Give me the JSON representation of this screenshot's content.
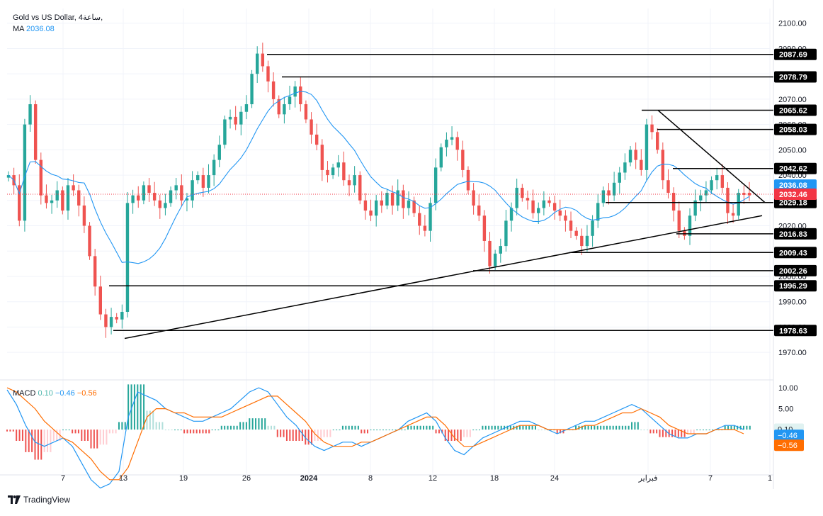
{
  "header": {
    "symbol_title": "Gold vs US Dollar, 4ساعة,",
    "ma_label": "MA",
    "ma_value": "2036.08"
  },
  "macd_header": {
    "label": "MACD",
    "hist": "0.10",
    "macd": "−0.46",
    "signal": "−0.56"
  },
  "brand": "TradingView",
  "colors": {
    "up": "#26a69a",
    "down": "#ef5350",
    "ma": "#2196f3",
    "macd_line": "#2196f3",
    "signal_line": "#ff6d00",
    "price_tag": "#f23645",
    "ma_tag": "#2196f3"
  },
  "chart_data": [
    {
      "type": "candlestick",
      "title": "Gold vs US Dollar, 4ساعة",
      "ylim": [
        1965,
        2103
      ],
      "y_ticks": [
        "2100.00",
        "2090.00",
        "2080.00",
        "2070.00",
        "2060.00",
        "2050.00",
        "2040.00",
        "2030.00",
        "2020.00",
        "2010.00",
        "2000.00",
        "1990.00",
        "1980.00",
        "1970.00"
      ],
      "x_ticks": [
        "7",
        "13",
        "19",
        "26",
        "2024",
        "8",
        "12",
        "18",
        "24",
        "فبراير",
        "7",
        "1"
      ],
      "current_price": 2032.46,
      "ma_value": 2036.08,
      "levels": [
        {
          "label": "2087.69",
          "value": 2087.69
        },
        {
          "label": "2078.79",
          "value": 2078.79
        },
        {
          "label": "2065.62",
          "value": 2065.62
        },
        {
          "label": "2058.03",
          "value": 2058.03
        },
        {
          "label": "2042.62",
          "value": 2042.62
        },
        {
          "label": "2029.18",
          "value": 2029.18
        },
        {
          "label": "2016.83",
          "value": 2016.83
        },
        {
          "label": "2009.43",
          "value": 2009.43
        },
        {
          "label": "2002.26",
          "value": 2002.26
        },
        {
          "label": "1996.29",
          "value": 1996.29
        },
        {
          "label": "1978.63",
          "value": 1978.63
        }
      ],
      "trendlines": [
        {
          "name": "ascending-support",
          "from": 1975.5,
          "to": 2024.0
        },
        {
          "name": "descending-resistance",
          "from": 2065.6,
          "to": 2029.2
        }
      ],
      "close_path": [
        2040,
        2036,
        2022,
        2060,
        2068,
        2046,
        2032,
        2029,
        2030,
        2034,
        2026,
        2036,
        2034,
        2028,
        2020,
        2008,
        1996,
        1985,
        1980,
        1984,
        1983,
        1986,
        2029,
        2032,
        2030,
        2036,
        2033,
        2030,
        2027,
        2029,
        2034,
        2036,
        2030,
        2030,
        2038,
        2040,
        2035,
        2040,
        2046,
        2052,
        2062,
        2063,
        2060,
        2065,
        2068,
        2080,
        2088,
        2083,
        2077,
        2070,
        2064,
        2068,
        2071,
        2075,
        2068,
        2062,
        2056,
        2052,
        2042,
        2040,
        2043,
        2045,
        2038,
        2036,
        2040,
        2030,
        2026,
        2024,
        2030,
        2028,
        2033,
        2028,
        2034,
        2027,
        2030,
        2025,
        2020,
        2018,
        2029,
        2043,
        2051,
        2054,
        2055,
        2050,
        2042,
        2034,
        2028,
        2024,
        2014,
        2004,
        2009,
        2012,
        2022,
        2027,
        2035,
        2031,
        2030,
        2025,
        2027,
        2030,
        2029,
        2026,
        2024,
        2022,
        2018,
        2016,
        2012,
        2016,
        2022,
        2029,
        2034,
        2032,
        2037,
        2041,
        2045,
        2050,
        2046,
        2042,
        2060,
        2057,
        2050,
        2038,
        2033,
        2026,
        2018,
        2016,
        2024,
        2030,
        2032,
        2034,
        2038,
        2040,
        2035,
        2025,
        2024,
        2033,
        2033,
        2032
      ]
    },
    {
      "type": "macd",
      "ylim": [
        -10.5,
        11.2
      ],
      "y_ticks": [
        "10.00",
        "5.00"
      ],
      "hist": 0.1,
      "macd": -0.46,
      "signal": -0.56,
      "macd_path": [
        9.5,
        6,
        1,
        -3,
        -4,
        -3,
        -2,
        -4,
        -8,
        -12,
        -14,
        -13,
        -10,
        3,
        9,
        8,
        7,
        5,
        4,
        3,
        2,
        2,
        3,
        4,
        5,
        7,
        9,
        10,
        9,
        6,
        3,
        1,
        -2,
        -4,
        -5,
        -4,
        -3,
        -3,
        -4,
        -3,
        -2,
        -1,
        0,
        2,
        3,
        4,
        2,
        -2,
        -5,
        -6,
        -4,
        -2,
        -1,
        0,
        1,
        2,
        2,
        1,
        0,
        -1,
        0,
        1,
        2,
        2,
        3,
        4,
        5,
        6,
        5,
        3,
        1,
        -1,
        -2,
        -2,
        -1,
        -1,
        0,
        1,
        1,
        0
      ],
      "signal_path": [
        10,
        9,
        7,
        5,
        2,
        0,
        -2,
        -3,
        -5,
        -7,
        -10,
        -12,
        -12,
        -9,
        -3,
        3,
        5,
        5,
        4,
        4,
        3,
        3,
        3,
        3,
        4,
        5,
        6,
        7,
        8,
        8,
        6,
        4,
        2,
        -1,
        -3,
        -4,
        -4,
        -4,
        -3,
        -3,
        -2,
        -1,
        0,
        1,
        2,
        3,
        3,
        1,
        -2,
        -4,
        -4,
        -3,
        -2,
        -1,
        0,
        1,
        1,
        1,
        0,
        0,
        0,
        0,
        1,
        1,
        2,
        3,
        4,
        4,
        5,
        4,
        3,
        1,
        0,
        -1,
        -1,
        -1,
        0,
        0,
        0,
        -1
      ]
    }
  ]
}
